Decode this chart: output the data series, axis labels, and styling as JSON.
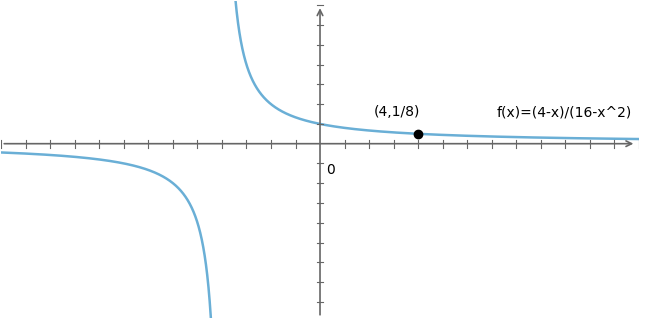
{
  "func_label": "f(x)=(4-x)/(16-x^2)",
  "point_label": "(4,1/8)",
  "point_x": 4,
  "point_y": 0.125,
  "curve_color": "#6aafd6",
  "point_color": "black",
  "axis_color": "#666666",
  "background_color": "#ffffff",
  "xlim": [
    -13,
    13
  ],
  "ylim": [
    -2.2,
    1.8
  ],
  "figsize": [
    6.61,
    3.19
  ],
  "dpi": 100,
  "linewidth": 1.8,
  "clip_val": 5
}
